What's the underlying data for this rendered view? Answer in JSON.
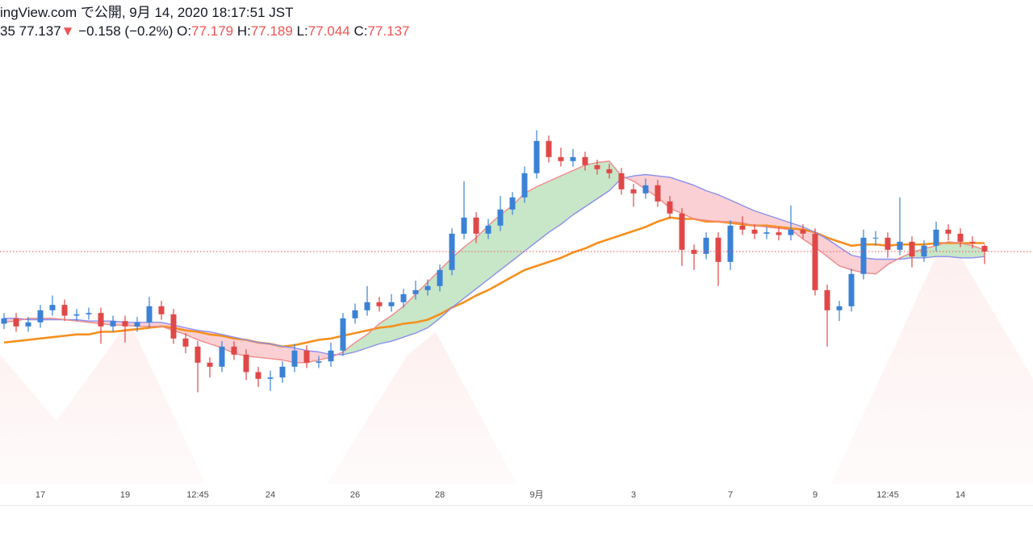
{
  "header": {
    "title": "ingView.com で公開, 9月 14, 2020 18:17:51 JST",
    "symbol": "35",
    "last": "77.137",
    "arrow": "▼",
    "change": "−0.158 (−0.2%)",
    "ohlc": [
      {
        "label": "O:",
        "value": "77.179"
      },
      {
        "label": "H:",
        "value": "77.189"
      },
      {
        "label": "L:",
        "value": "77.044"
      },
      {
        "label": "C:",
        "value": "77.137"
      }
    ]
  },
  "chart_data": {
    "type": "candlestick",
    "categories": [
      null,
      null,
      null,
      "17",
      null,
      null,
      null,
      null,
      null,
      null,
      "19",
      null,
      null,
      null,
      null,
      null,
      "12:45",
      null,
      null,
      null,
      null,
      null,
      "24",
      null,
      null,
      null,
      null,
      null,
      null,
      "26",
      null,
      null,
      null,
      null,
      null,
      null,
      "28",
      null,
      null,
      null,
      null,
      null,
      null,
      null,
      "9月",
      null,
      null,
      null,
      null,
      null,
      null,
      null,
      "3",
      null,
      null,
      null,
      null,
      null,
      null,
      null,
      "7",
      null,
      null,
      null,
      null,
      null,
      null,
      "9",
      null,
      null,
      null,
      null,
      null,
      "12:45",
      null,
      null,
      null,
      null,
      null,
      "14",
      null,
      null
    ],
    "open": [
      76.6,
      76.64,
      76.58,
      76.61,
      76.7,
      76.74,
      76.66,
      76.67,
      76.68,
      76.58,
      76.62,
      76.58,
      76.61,
      76.73,
      76.67,
      76.49,
      76.43,
      76.31,
      76.28,
      76.43,
      76.37,
      76.24,
      76.19,
      76.2,
      76.28,
      76.4,
      76.31,
      76.32,
      76.4,
      76.64,
      76.7,
      76.76,
      76.73,
      76.76,
      76.82,
      76.85,
      76.88,
      77.0,
      77.27,
      77.39,
      77.27,
      77.33,
      77.45,
      77.54,
      77.72,
      77.96,
      77.84,
      77.81,
      77.84,
      77.78,
      77.75,
      77.72,
      77.6,
      77.57,
      77.63,
      77.51,
      77.42,
      77.15,
      77.12,
      77.24,
      77.06,
      77.33,
      77.3,
      77.27,
      77.28,
      77.26,
      77.3,
      77.27,
      76.85,
      76.7,
      76.73,
      76.97,
      77.24,
      77.24,
      77.15,
      77.21,
      77.1,
      77.18,
      77.3,
      77.27,
      77.21,
      77.179
    ],
    "high": [
      76.68,
      76.68,
      76.65,
      76.74,
      76.81,
      76.78,
      76.71,
      76.72,
      76.72,
      76.66,
      76.66,
      76.65,
      76.8,
      76.77,
      76.71,
      76.53,
      76.47,
      76.35,
      76.47,
      76.47,
      76.41,
      76.28,
      76.25,
      76.32,
      76.45,
      76.44,
      76.36,
      76.46,
      76.68,
      76.75,
      76.88,
      76.8,
      76.82,
      76.86,
      76.92,
      76.93,
      77.04,
      77.31,
      77.66,
      77.43,
      77.38,
      77.55,
      77.58,
      77.77,
      78.04,
      78.0,
      77.91,
      77.9,
      77.88,
      77.82,
      77.79,
      77.76,
      77.64,
      77.68,
      77.67,
      77.55,
      77.46,
      77.19,
      77.28,
      77.28,
      77.37,
      77.4,
      77.34,
      77.32,
      77.32,
      77.48,
      77.34,
      77.31,
      76.89,
      76.77,
      77.01,
      77.3,
      77.29,
      77.28,
      77.54,
      77.25,
      77.22,
      77.36,
      77.34,
      77.31,
      77.25,
      77.189
    ],
    "low": [
      76.56,
      76.54,
      76.54,
      76.57,
      76.66,
      76.62,
      76.62,
      76.63,
      76.45,
      76.54,
      76.46,
      76.54,
      76.57,
      76.63,
      76.45,
      76.38,
      76.09,
      76.2,
      76.24,
      76.33,
      76.18,
      76.13,
      76.1,
      76.16,
      76.24,
      76.27,
      76.27,
      76.28,
      76.36,
      76.6,
      76.66,
      76.69,
      76.69,
      76.72,
      76.78,
      76.81,
      76.84,
      76.96,
      77.23,
      77.2,
      77.23,
      77.29,
      77.41,
      77.5,
      77.68,
      77.8,
      77.77,
      77.77,
      77.74,
      77.71,
      77.68,
      77.56,
      77.47,
      77.53,
      77.47,
      77.38,
      77.03,
      77.0,
      77.08,
      76.88,
      77.0,
      77.26,
      77.23,
      77.23,
      77.22,
      77.22,
      77.23,
      76.81,
      76.43,
      76.62,
      76.69,
      76.93,
      77.18,
      77.09,
      77.11,
      77.02,
      77.06,
      77.14,
      77.22,
      77.17,
      77.16,
      77.044
    ],
    "close": [
      76.64,
      76.58,
      76.61,
      76.7,
      76.74,
      76.66,
      76.67,
      76.68,
      76.58,
      76.62,
      76.58,
      76.61,
      76.73,
      76.67,
      76.49,
      76.43,
      76.31,
      76.28,
      76.43,
      76.37,
      76.24,
      76.19,
      76.2,
      76.28,
      76.4,
      76.31,
      76.32,
      76.4,
      76.64,
      76.7,
      76.76,
      76.73,
      76.76,
      76.82,
      76.85,
      76.88,
      77.0,
      77.27,
      77.39,
      77.27,
      77.33,
      77.45,
      77.54,
      77.72,
      77.96,
      77.84,
      77.81,
      77.84,
      77.78,
      77.75,
      77.72,
      77.6,
      77.57,
      77.63,
      77.51,
      77.42,
      77.15,
      77.12,
      77.24,
      77.06,
      77.33,
      77.3,
      77.27,
      77.28,
      77.26,
      77.3,
      77.27,
      76.85,
      76.7,
      76.73,
      76.97,
      77.24,
      77.24,
      77.15,
      77.21,
      77.1,
      77.18,
      77.3,
      77.27,
      77.21,
      77.2,
      77.137
    ],
    "up_color": "#3b82d6",
    "down_color": "#e04848",
    "series": [
      {
        "color": "#f5901e",
        "values": [
          76.46,
          76.47,
          76.48,
          76.49,
          76.5,
          76.51,
          76.52,
          76.52,
          76.54,
          76.54,
          76.55,
          76.56,
          76.57,
          76.58,
          76.57,
          76.55,
          76.54,
          76.52,
          76.51,
          76.49,
          76.48,
          76.46,
          76.45,
          76.43,
          76.44,
          76.46,
          76.48,
          76.49,
          76.51,
          76.53,
          76.55,
          76.57,
          76.58,
          76.6,
          76.61,
          76.63,
          76.67,
          76.72,
          76.76,
          76.81,
          76.85,
          76.9,
          76.95,
          77.0,
          77.03,
          77.06,
          77.09,
          77.13,
          77.16,
          77.2,
          77.23,
          77.26,
          77.29,
          77.32,
          77.36,
          77.39,
          77.38,
          77.38,
          77.36,
          77.36,
          77.35,
          77.34,
          77.33,
          77.33,
          77.32,
          77.31,
          77.3,
          77.28,
          77.24,
          77.21,
          77.18,
          77.19,
          77.19,
          77.18,
          77.19,
          77.19,
          77.19,
          77.2,
          77.2,
          77.2,
          77.2,
          77.2
        ]
      },
      {
        "color": "#8a8ef0",
        "values": [
          76.64,
          76.64,
          76.63,
          76.63,
          76.63,
          76.63,
          76.63,
          76.62,
          76.62,
          76.62,
          76.61,
          76.61,
          76.61,
          76.61,
          76.59,
          76.57,
          76.55,
          76.54,
          76.52,
          76.5,
          76.48,
          76.46,
          76.45,
          76.43,
          76.42,
          76.4,
          76.39,
          76.37,
          76.37,
          76.39,
          76.42,
          76.45,
          76.47,
          76.5,
          76.53,
          76.57,
          76.64,
          76.72,
          76.79,
          76.86,
          76.93,
          77.0,
          77.07,
          77.14,
          77.21,
          77.28,
          77.34,
          77.41,
          77.47,
          77.53,
          77.59,
          77.68,
          77.7,
          77.71,
          77.7,
          77.69,
          77.66,
          77.63,
          77.59,
          77.56,
          77.52,
          77.48,
          77.44,
          77.41,
          77.38,
          77.35,
          77.32,
          77.28,
          77.23,
          77.17,
          77.11,
          77.09,
          77.08,
          77.08,
          77.08,
          77.09,
          77.09,
          77.1,
          77.1,
          77.09,
          77.09,
          77.1
        ]
      },
      {
        "color": "#f08a8a",
        "values": [
          76.61,
          76.62,
          76.64,
          76.64,
          76.64,
          76.63,
          76.62,
          76.61,
          76.6,
          76.59,
          76.59,
          76.58,
          76.58,
          76.58,
          76.55,
          76.52,
          76.48,
          76.45,
          76.42,
          76.38,
          76.36,
          76.35,
          76.34,
          76.33,
          76.31,
          76.31,
          76.33,
          76.35,
          76.39,
          76.46,
          76.52,
          76.6,
          76.66,
          76.73,
          76.82,
          76.91,
          77.0,
          77.09,
          77.17,
          77.24,
          77.33,
          77.41,
          77.48,
          77.57,
          77.62,
          77.66,
          77.7,
          77.74,
          77.78,
          77.8,
          77.81,
          77.7,
          77.66,
          77.6,
          77.54,
          77.46,
          77.42,
          77.38,
          77.37,
          77.36,
          77.36,
          77.35,
          77.33,
          77.32,
          77.31,
          77.3,
          77.23,
          77.17,
          77.1,
          77.03,
          77.0,
          76.98,
          76.97,
          77.04,
          77.09,
          77.13,
          77.16,
          77.18,
          77.21,
          77.2,
          77.18,
          77.15
        ]
      }
    ],
    "fill_between": [
      1,
      2
    ],
    "fill_up_color": "rgba(110,190,110,0.38)",
    "fill_down_color": "rgba(240,110,120,0.32)",
    "ylim": [
      75.247,
      78.709
    ],
    "price_line": true,
    "price_line_color": "#ef5350"
  }
}
